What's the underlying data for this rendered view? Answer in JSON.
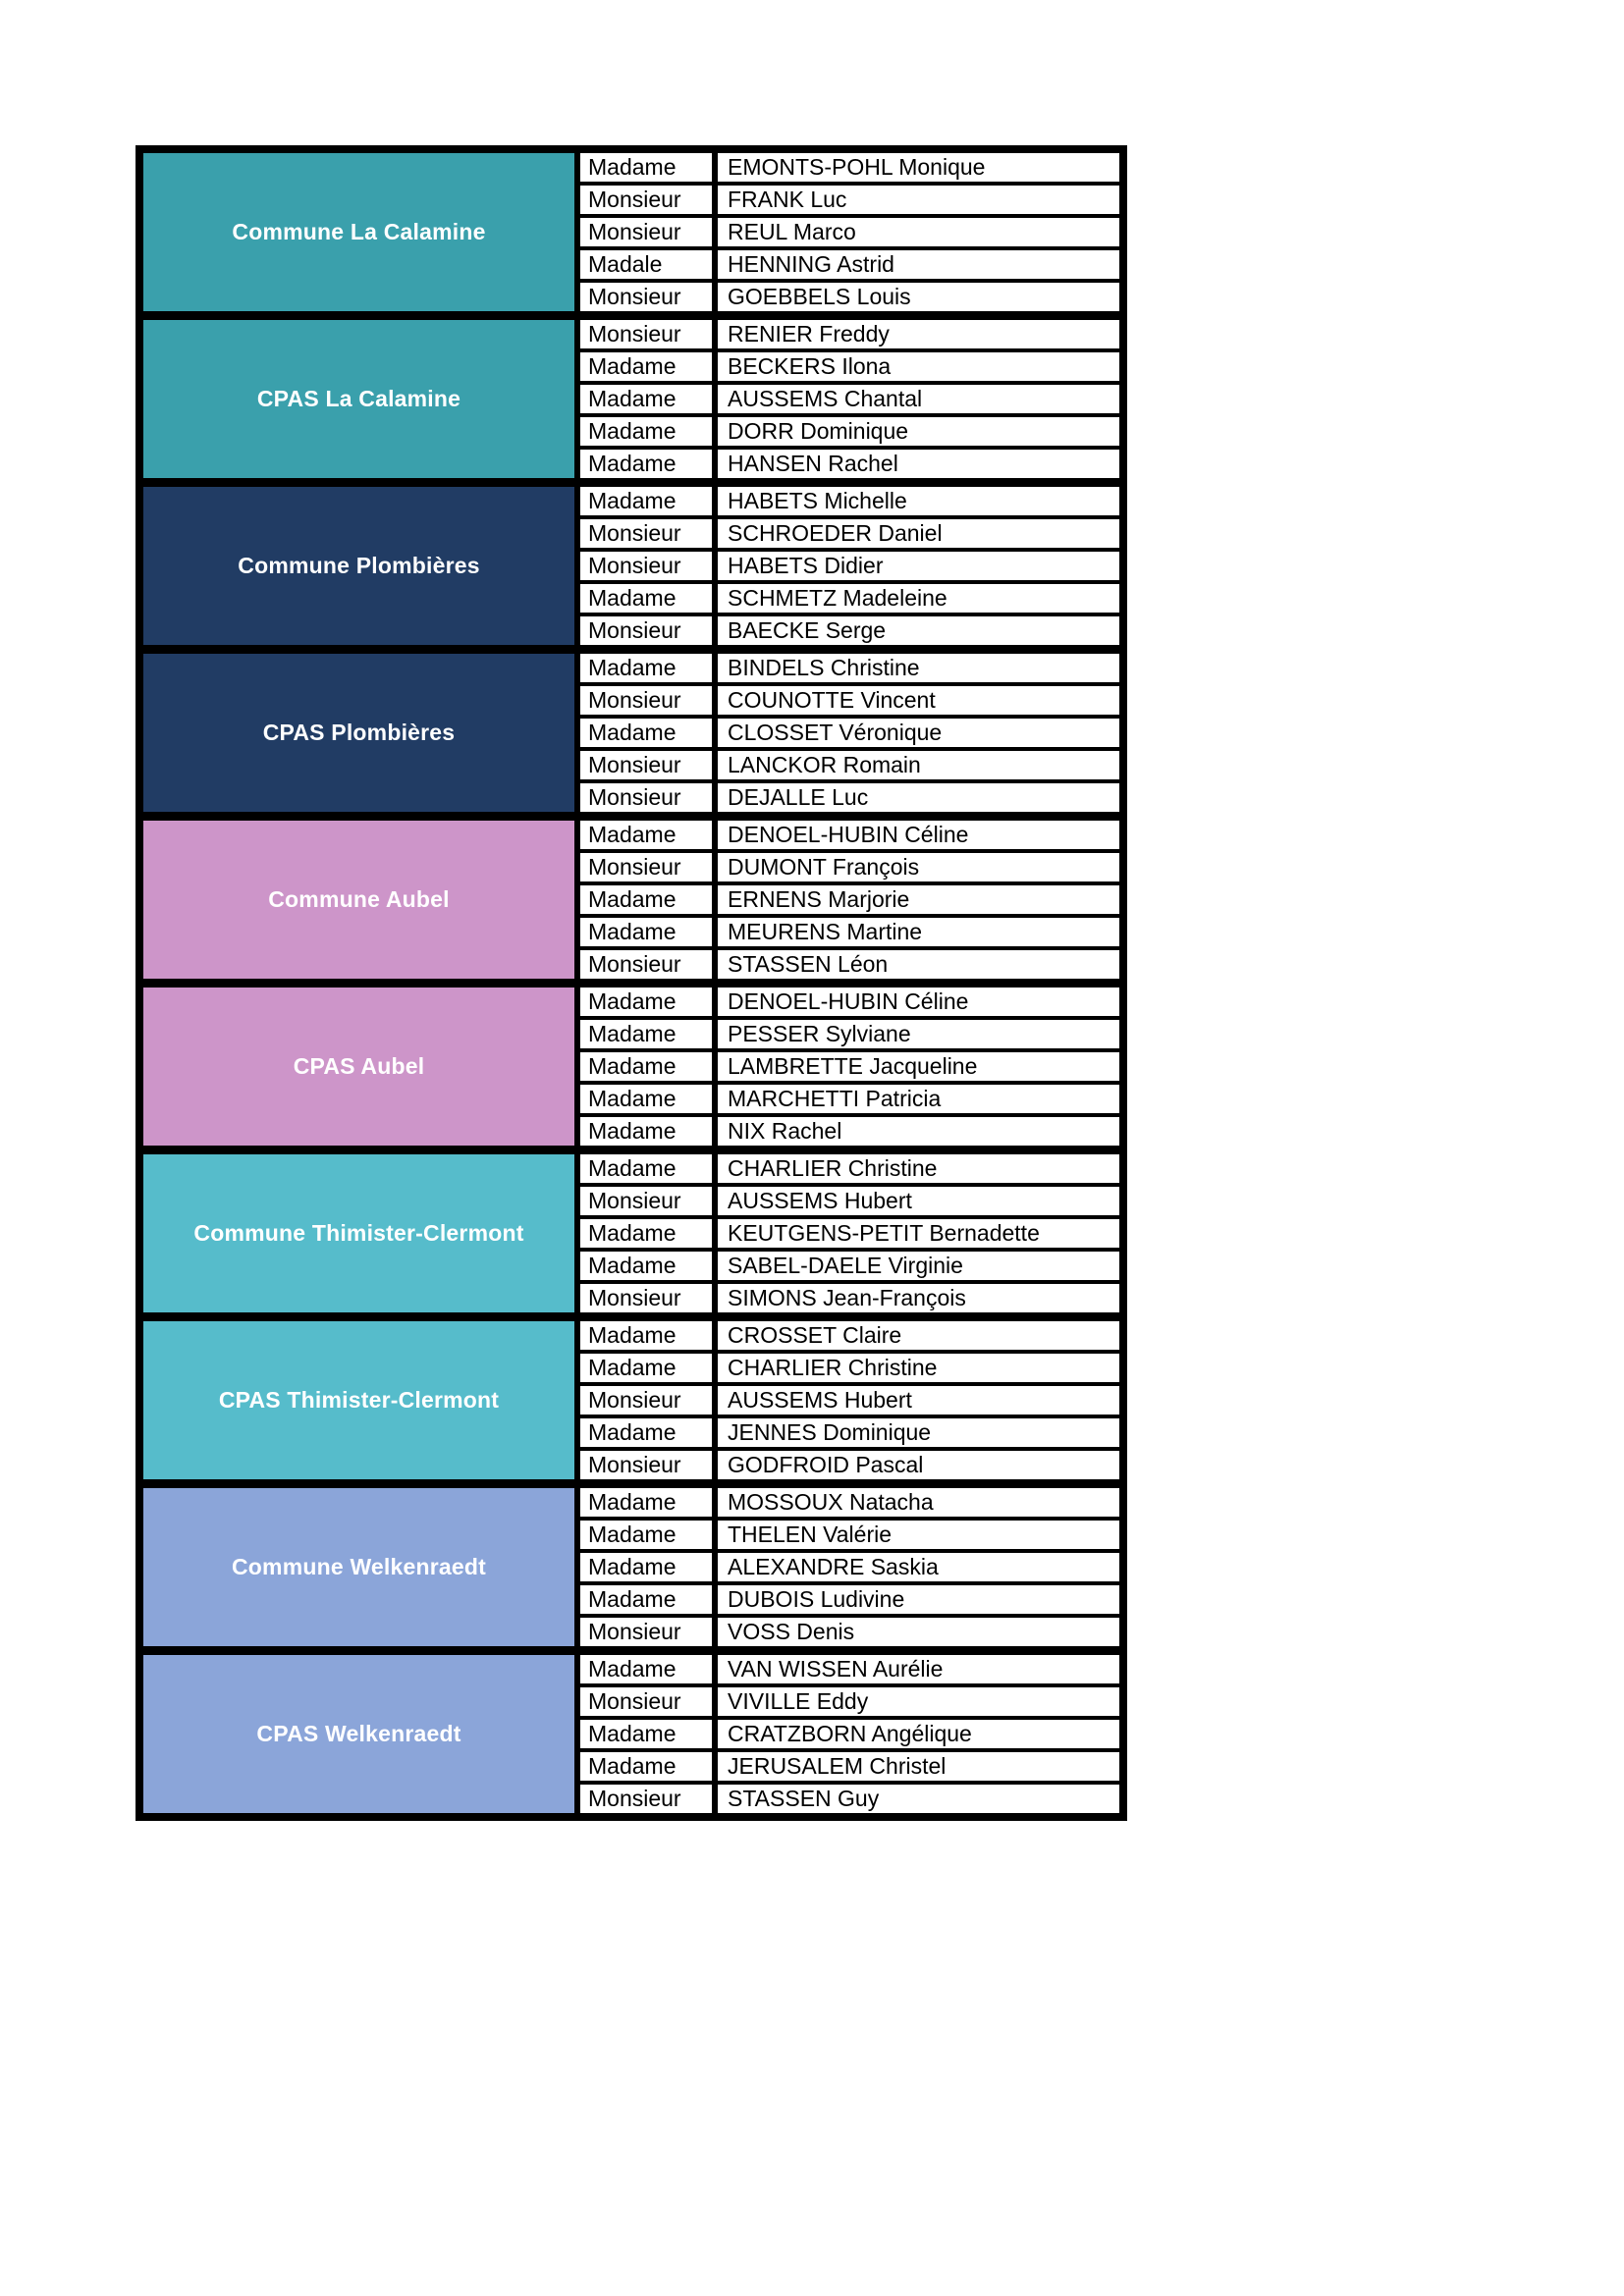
{
  "table": {
    "groups": [
      {
        "label": "Commune La Calamine",
        "color": "#3AA0AC",
        "members": [
          {
            "civility": "Madame",
            "name": "EMONTS-POHL Monique"
          },
          {
            "civility": "Monsieur",
            "name": "FRANK Luc"
          },
          {
            "civility": "Monsieur",
            "name": "REUL Marco"
          },
          {
            "civility": "Madale",
            "name": "HENNING Astrid"
          },
          {
            "civility": "Monsieur",
            "name": "GOEBBELS Louis"
          }
        ]
      },
      {
        "label": "CPAS La Calamine",
        "color": "#3AA0AC",
        "members": [
          {
            "civility": "Monsieur",
            "name": "RENIER Freddy"
          },
          {
            "civility": "Madame",
            "name": "BECKERS Ilona"
          },
          {
            "civility": "Madame",
            "name": "AUSSEMS Chantal"
          },
          {
            "civility": "Madame",
            "name": "DORR Dominique"
          },
          {
            "civility": "Madame",
            "name": "HANSEN Rachel"
          }
        ]
      },
      {
        "label": "Commune Plombières",
        "color": "#213C64",
        "members": [
          {
            "civility": "Madame",
            "name": "HABETS Michelle"
          },
          {
            "civility": "Monsieur",
            "name": "SCHROEDER Daniel"
          },
          {
            "civility": "Monsieur",
            "name": "HABETS Didier"
          },
          {
            "civility": "Madame",
            "name": "SCHMETZ Madeleine"
          },
          {
            "civility": "Monsieur",
            "name": "BAECKE Serge"
          }
        ]
      },
      {
        "label": "CPAS Plombières",
        "color": "#213C64",
        "members": [
          {
            "civility": "Madame",
            "name": "BINDELS Christine"
          },
          {
            "civility": "Monsieur",
            "name": "COUNOTTE Vincent"
          },
          {
            "civility": "Madame",
            "name": "CLOSSET Véronique"
          },
          {
            "civility": "Monsieur",
            "name": "LANCKOR Romain"
          },
          {
            "civility": "Monsieur",
            "name": "DEJALLE Luc"
          }
        ]
      },
      {
        "label": "Commune Aubel",
        "color": "#CD95C9",
        "members": [
          {
            "civility": "Madame",
            "name": "DENOEL-HUBIN Céline"
          },
          {
            "civility": "Monsieur",
            "name": "DUMONT François"
          },
          {
            "civility": "Madame",
            "name": "ERNENS Marjorie"
          },
          {
            "civility": "Madame",
            "name": "MEURENS Martine"
          },
          {
            "civility": "Monsieur",
            "name": "STASSEN Léon"
          }
        ]
      },
      {
        "label": "CPAS Aubel",
        "color": "#CD95C9",
        "members": [
          {
            "civility": "Madame",
            "name": "DENOEL-HUBIN Céline"
          },
          {
            "civility": "Madame",
            "name": "PESSER Sylviane"
          },
          {
            "civility": "Madame",
            "name": "LAMBRETTE Jacqueline"
          },
          {
            "civility": "Madame",
            "name": "MARCHETTI Patricia"
          },
          {
            "civility": "Madame",
            "name": "NIX Rachel"
          }
        ]
      },
      {
        "label": "Commune Thimister-Clermont",
        "color": "#56BCCB",
        "members": [
          {
            "civility": "Madame",
            "name": "CHARLIER Christine"
          },
          {
            "civility": "Monsieur",
            "name": "AUSSEMS Hubert"
          },
          {
            "civility": "Madame",
            "name": "KEUTGENS-PETIT Bernadette"
          },
          {
            "civility": "Madame",
            "name": "SABEL-DAELE Virginie"
          },
          {
            "civility": "Monsieur",
            "name": "SIMONS Jean-François"
          }
        ]
      },
      {
        "label": "CPAS Thimister-Clermont",
        "color": "#56BCCB",
        "members": [
          {
            "civility": "Madame",
            "name": "CROSSET Claire"
          },
          {
            "civility": "Madame",
            "name": "CHARLIER Christine"
          },
          {
            "civility": "Monsieur",
            "name": "AUSSEMS Hubert"
          },
          {
            "civility": "Madame",
            "name": "JENNES Dominique"
          },
          {
            "civility": "Monsieur",
            "name": "GODFROID Pascal"
          }
        ]
      },
      {
        "label": "Commune Welkenraedt",
        "color": "#8BA5D9",
        "members": [
          {
            "civility": "Madame",
            "name": "MOSSOUX Natacha"
          },
          {
            "civility": "Madame",
            "name": "THELEN Valérie"
          },
          {
            "civility": "Madame",
            "name": "ALEXANDRE Saskia"
          },
          {
            "civility": "Madame",
            "name": "DUBOIS Ludivine"
          },
          {
            "civility": "Monsieur",
            "name": "VOSS Denis"
          }
        ]
      },
      {
        "label": "CPAS Welkenraedt",
        "color": "#8BA5D9",
        "members": [
          {
            "civility": "Madame",
            "name": "VAN WISSEN Aurélie"
          },
          {
            "civility": "Monsieur",
            "name": "VIVILLE Eddy"
          },
          {
            "civility": "Madame",
            "name": "CRATZBORN Angélique"
          },
          {
            "civility": "Madame",
            "name": "JERUSALEM Christel"
          },
          {
            "civility": "Monsieur",
            "name": "STASSEN Guy"
          }
        ]
      }
    ]
  }
}
